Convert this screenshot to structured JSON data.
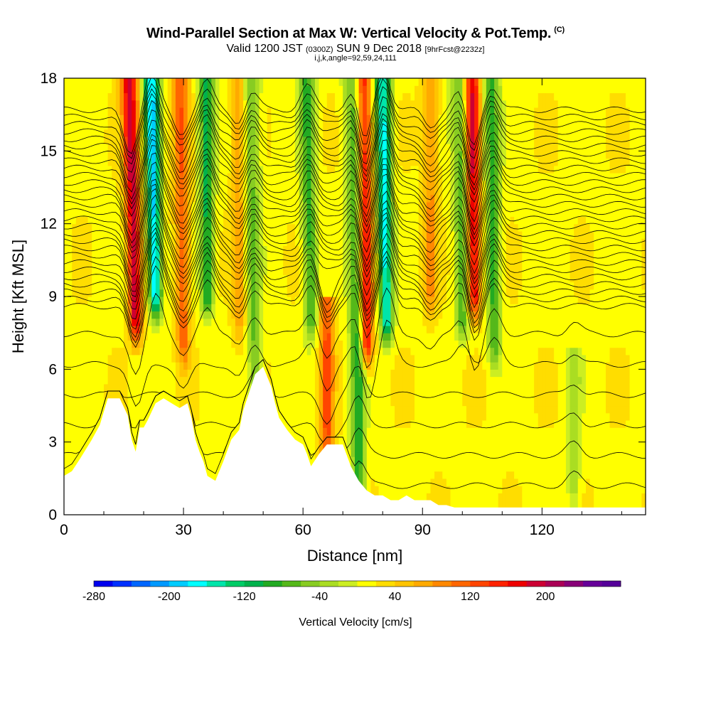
{
  "header": {
    "title": "Wind-Parallel Section at Max W: Vertical Velocity & Pot.Temp.",
    "copyright_tag": "(C)",
    "subtitle_prefix": "Valid 1200 JST",
    "subtitle_utc": "(0300Z)",
    "subtitle_date": "SUN 9 Dec 2018",
    "subtitle_forecast": "[9hrFcst@2232z]",
    "grid_info": "i,j,k,angle=92,59,24,111"
  },
  "chart_data": {
    "type": "heatmap",
    "title": "Wind-Parallel Section at Max W: Vertical Velocity & Pot.Temp.",
    "xlabel": "Distance [nm]",
    "ylabel": "Height [Kft MSL]",
    "xlim": [
      0,
      146
    ],
    "ylim": [
      0,
      18
    ],
    "x_ticks": [
      0,
      30,
      60,
      90,
      120
    ],
    "x_tick_labels": [
      "0",
      "30",
      "60",
      "90",
      "120"
    ],
    "y_ticks": [
      0,
      3,
      6,
      9,
      12,
      15,
      18
    ],
    "y_tick_labels": [
      "0",
      "3",
      "6",
      "9",
      "12",
      "15",
      "18"
    ],
    "colorbar": {
      "label": "Vertical Velocity [cm/s]",
      "range": [
        -280,
        280
      ],
      "step": 20,
      "tick_values": [
        -280,
        -200,
        -120,
        -40,
        40,
        120,
        200
      ],
      "tick_labels": [
        "-280",
        "-200",
        "-120",
        "-40",
        "40",
        "120",
        "200"
      ],
      "colors": [
        "#0000ee",
        "#0030ff",
        "#0066ff",
        "#0099ff",
        "#00ccff",
        "#00ffff",
        "#00e5aa",
        "#00cc66",
        "#00b24c",
        "#22aa22",
        "#55b81a",
        "#88cc22",
        "#aadd22",
        "#ccee22",
        "#ffff00",
        "#ffdd00",
        "#ffc400",
        "#ffaa00",
        "#ff8800",
        "#ff6600",
        "#ff4400",
        "#ff2200",
        "#ee0000",
        "#cc0033",
        "#aa0055",
        "#880077",
        "#660099",
        "#550099"
      ]
    },
    "series": [
      {
        "name": "updraft",
        "x_center": 18,
        "top": 18,
        "bottom": 8,
        "tilt": 0.45,
        "peak_w": 180
      },
      {
        "name": "downdraft",
        "x_center": 23,
        "top": 18,
        "bottom": 9,
        "tilt": 0.35,
        "peak_w": -200
      },
      {
        "name": "updraft",
        "x_center": 30,
        "top": 18,
        "bottom": 7,
        "tilt": 0.2,
        "peak_w": 100
      },
      {
        "name": "downdraft",
        "x_center": 36,
        "top": 18,
        "bottom": 9,
        "tilt": 0.1,
        "peak_w": -120
      },
      {
        "name": "updraft",
        "x_center": 44,
        "top": 18,
        "bottom": 8,
        "tilt": 0.0,
        "peak_w": 60
      },
      {
        "name": "downdraft",
        "x_center": 48,
        "top": 18,
        "bottom": 5,
        "tilt": 0.25,
        "peak_w": -80
      },
      {
        "name": "updraft",
        "x_center": 66,
        "top": 8,
        "bottom": 1,
        "tilt": 0.0,
        "peak_w": 110
      },
      {
        "name": "downdraft",
        "x_center": 62,
        "top": 18,
        "bottom": 8,
        "tilt": 0.3,
        "peak_w": -100
      },
      {
        "name": "downdraft",
        "x_center": 74,
        "top": 18,
        "bottom": 1,
        "tilt": 0.2,
        "peak_w": -110
      },
      {
        "name": "updraft",
        "x_center": 76,
        "top": 18,
        "bottom": 7,
        "tilt": 0.25,
        "peak_w": 170
      },
      {
        "name": "downdraft",
        "x_center": 81,
        "top": 18,
        "bottom": 8,
        "tilt": 0.3,
        "peak_w": -180
      },
      {
        "name": "updraft",
        "x_center": 92,
        "top": 18,
        "bottom": 9,
        "tilt": 0.0,
        "peak_w": 70
      },
      {
        "name": "downdraft",
        "x_center": 100,
        "top": 18,
        "bottom": 8,
        "tilt": 0.2,
        "peak_w": -90
      },
      {
        "name": "updraft",
        "x_center": 103,
        "top": 18,
        "bottom": 9,
        "tilt": 0.2,
        "peak_w": 170
      },
      {
        "name": "downdraft",
        "x_center": 108,
        "top": 18,
        "bottom": 7,
        "tilt": 0.2,
        "peak_w": -100
      },
      {
        "name": "downdraft",
        "x_center": 128,
        "top": 6,
        "bottom": 1,
        "tilt": 0.0,
        "peak_w": -50
      }
    ],
    "terrain": {
      "x": [
        0,
        2,
        4,
        7,
        9,
        11,
        14,
        16,
        17,
        18,
        19,
        20,
        21,
        23,
        25,
        27,
        29,
        31,
        32,
        33,
        34,
        35,
        36,
        38,
        40,
        42,
        44,
        45,
        46,
        48,
        50,
        52,
        53,
        54,
        56,
        58,
        60,
        61,
        62,
        64,
        66,
        68,
        70,
        72,
        74,
        76,
        78,
        80,
        82,
        84,
        86,
        88,
        90,
        92,
        94,
        96,
        98,
        100,
        120,
        146
      ],
      "height": [
        1.6,
        1.8,
        2.3,
        3.1,
        3.7,
        4.8,
        4.8,
        4.1,
        3.1,
        2.6,
        3.6,
        3.6,
        3.9,
        4.6,
        4.8,
        4.6,
        4.4,
        4.6,
        4.0,
        3.1,
        2.6,
        2.2,
        1.6,
        1.4,
        2.2,
        3.1,
        3.5,
        4.3,
        4.8,
        5.8,
        6.1,
        5.3,
        4.6,
        4.0,
        3.5,
        3.1,
        2.9,
        2.5,
        2.0,
        2.5,
        2.9,
        2.9,
        2.9,
        2.0,
        1.4,
        1.0,
        0.8,
        0.8,
        0.6,
        0.6,
        0.8,
        0.6,
        0.6,
        0.6,
        0.4,
        0.4,
        0.3,
        0.3,
        0.3,
        0.3
      ]
    },
    "theta_contours": {
      "count": 34,
      "spacing_kft_aloft": 0.3
    }
  }
}
